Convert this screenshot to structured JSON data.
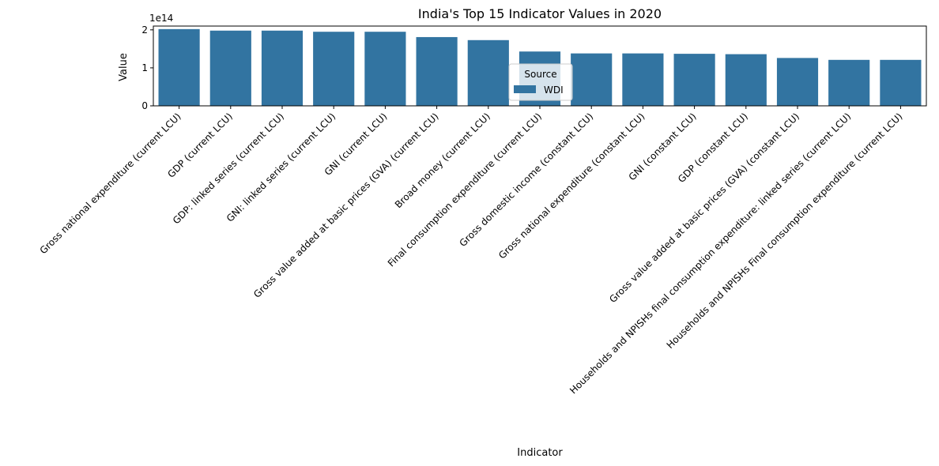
{
  "chart_data": {
    "type": "bar",
    "title": "India's Top 15 Indicator Values in 2020",
    "xlabel": "Indicator",
    "ylabel": "Value",
    "y_offset_label": "1e14",
    "ylim": [
      0,
      2.1
    ],
    "yticks": [
      0,
      1,
      2
    ],
    "grid": false,
    "legend": {
      "title": "Source",
      "placement": "center",
      "entries": [
        "WDI"
      ]
    },
    "categories": [
      "Gross national expenditure (current LCU)",
      "GDP (current LCU)",
      "GDP: linked series (current LCU)",
      "GNI: linked series (current LCU)",
      "GNI (current LCU)",
      "Gross value added at basic prices (GVA) (current LCU)",
      "Broad money (current LCU)",
      "Final consumption expenditure (current LCU)",
      "Gross domestic income (constant LCU)",
      "Gross national expenditure (constant LCU)",
      "GNI (constant LCU)",
      "GDP (constant LCU)",
      "Gross value added at basic prices (GVA) (constant LCU)",
      "Households and NPISHs final consumption expenditure: linked series (current LCU)",
      "Households and NPISHs Final consumption expenditure (current LCU)"
    ],
    "series": [
      {
        "name": "WDI",
        "color": "#3274a1",
        "values": [
          2.02,
          1.98,
          1.98,
          1.95,
          1.95,
          1.81,
          1.73,
          1.43,
          1.38,
          1.38,
          1.37,
          1.36,
          1.26,
          1.21,
          1.21
        ]
      }
    ]
  }
}
